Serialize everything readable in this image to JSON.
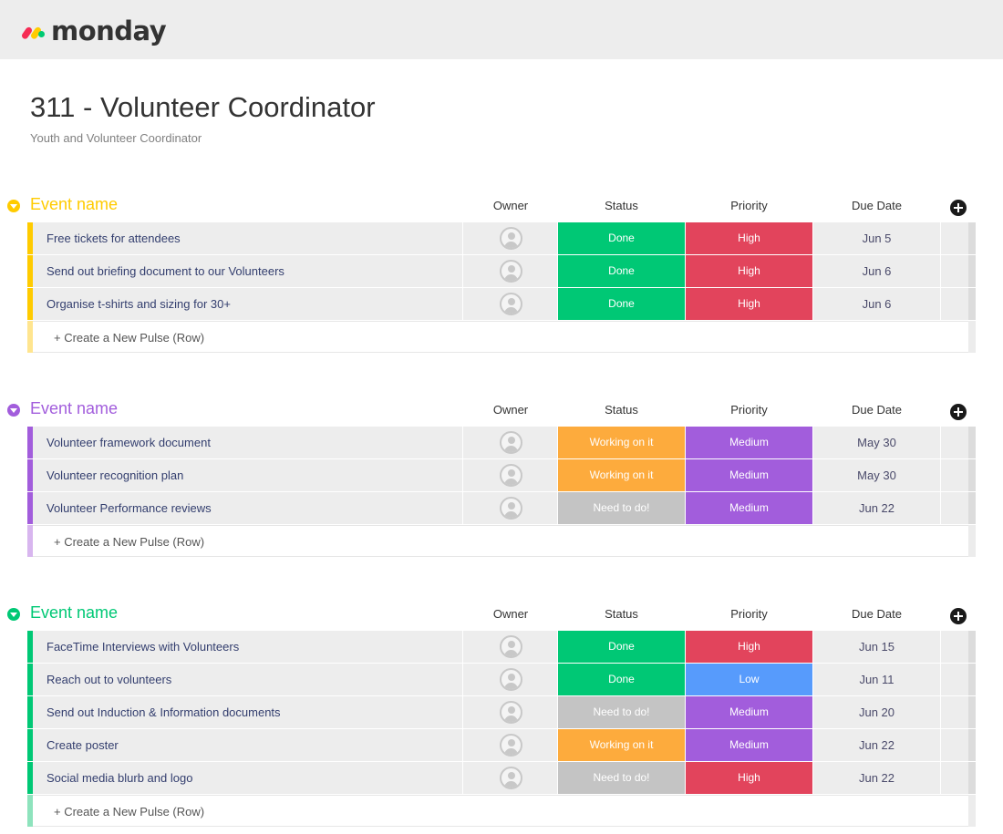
{
  "app": {
    "logo_text": "monday",
    "logo_colors": [
      "#f62b54",
      "#ffcc00",
      "#00ca72"
    ]
  },
  "board": {
    "title": "311 - Volunteer Coordinator",
    "description": "Youth and Volunteer Coordinator"
  },
  "columns": {
    "owner": "Owner",
    "status": "Status",
    "priority": "Priority",
    "due_date": "Due Date"
  },
  "create_label": "+ Create a New Pulse (Row)",
  "owner_icon": "user-avatar-placeholder-icon",
  "status_colors": {
    "Done": "#00c875",
    "Working on it": "#fdab3d",
    "Need to do!": "#c4c4c4"
  },
  "priority_colors": {
    "High": "#e2445c",
    "Medium": "#a25ddc",
    "Low": "#579bfc"
  },
  "groups": [
    {
      "name": "Event name",
      "color": "#ffcb00",
      "create_color": "#ffe58f",
      "items": [
        {
          "name": "Free tickets for attendees",
          "status": "Done",
          "priority": "High",
          "due": "Jun 5"
        },
        {
          "name": "Send out briefing document to our Volunteers",
          "status": "Done",
          "priority": "High",
          "due": "Jun 6"
        },
        {
          "name": "Organise t-shirts and sizing for 30+",
          "status": "Done",
          "priority": "High",
          "due": "Jun 6"
        }
      ]
    },
    {
      "name": "Event name",
      "color": "#a25ddc",
      "create_color": "#d8b6ef",
      "items": [
        {
          "name": "Volunteer framework document",
          "status": "Working on it",
          "priority": "Medium",
          "due": "May 30"
        },
        {
          "name": "Volunteer recognition plan",
          "status": "Working on it",
          "priority": "Medium",
          "due": "May 30"
        },
        {
          "name": "Volunteer Performance reviews",
          "status": "Need to do!",
          "priority": "Medium",
          "due": "Jun 22"
        }
      ]
    },
    {
      "name": "Event name",
      "color": "#00c875",
      "create_color": "#8ee3bd",
      "items": [
        {
          "name": "FaceTime Interviews with Volunteers",
          "status": "Done",
          "priority": "High",
          "due": "Jun 15"
        },
        {
          "name": "Reach out to volunteers",
          "status": "Done",
          "priority": "Low",
          "due": "Jun 11"
        },
        {
          "name": "Send out Induction & Information documents",
          "status": "Need to do!",
          "priority": "Medium",
          "due": "Jun 20"
        },
        {
          "name": "Create poster",
          "status": "Working on it",
          "priority": "Medium",
          "due": "Jun 22"
        },
        {
          "name": "Social media blurb and logo",
          "status": "Need to do!",
          "priority": "High",
          "due": "Jun 22"
        }
      ]
    }
  ]
}
